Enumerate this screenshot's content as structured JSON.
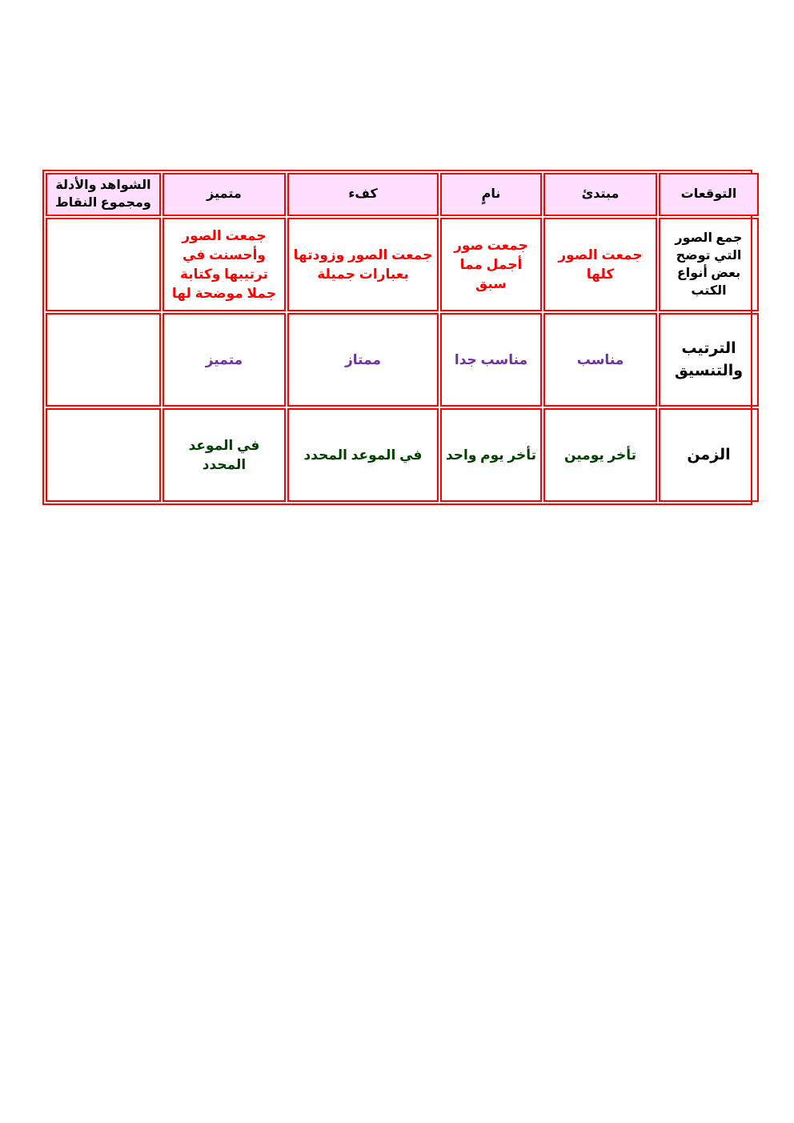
{
  "table": {
    "headers": [
      "التوقعات",
      "مبتدئ",
      "نامٍ",
      "كفء",
      "متميز",
      "الشواهد والأدلة ومجموع النقاط"
    ],
    "rows": [
      {
        "criterion": "جمع الصور التي توضح بعض أنواع الكتب",
        "cells": [
          "جمعت الصور كلها",
          "جمعت صور أجمل مما سبق",
          "جمعت الصور وزودتها بعبارات جميلة",
          "جمعت الصور وأحسنت في ترتيبها وكتابة جملا موضحة لها",
          ""
        ]
      },
      {
        "criterion": "الترتيب والتنسيق",
        "cells": [
          "مناسب",
          "مناسب جدا",
          "ممتاز",
          "متميز",
          ""
        ]
      },
      {
        "criterion": "الزمن",
        "cells": [
          "تأخر يومين",
          "تأخر يوم واحد",
          "في الموعد المحدد",
          "في الموعد المحدد",
          ""
        ]
      }
    ]
  },
  "colors": {
    "border": "#ff0000",
    "header_bg": "#ffdfff",
    "row1_text": "#ff0000",
    "row2_text": "#7030a0",
    "row3_text": "#004000"
  }
}
